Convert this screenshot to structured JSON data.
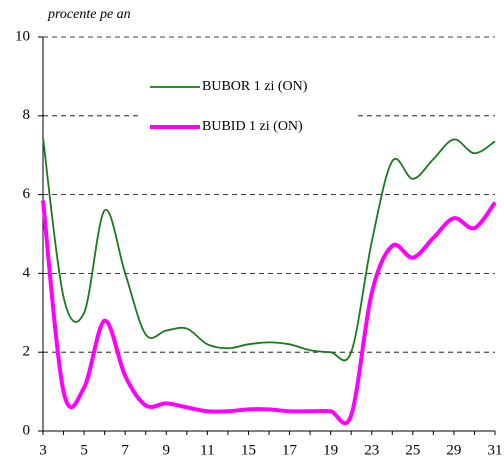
{
  "chart_data": {
    "type": "line",
    "y_label": "procente pe an",
    "categories": [
      "3",
      null,
      "5",
      null,
      "7",
      null,
      "9",
      null,
      "11",
      null,
      "15",
      null,
      "17",
      null,
      "19",
      null,
      "23",
      null,
      "25",
      null,
      "29",
      null,
      "31"
    ],
    "series": [
      {
        "name": "BUBOR 1 zi (ON)",
        "color": "#1a7a1a",
        "values": [
          7.45,
          3.4,
          3.0,
          5.6,
          4.0,
          2.45,
          2.55,
          2.6,
          2.2,
          2.1,
          2.2,
          2.25,
          2.2,
          2.05,
          2.0,
          2.0,
          4.8,
          6.85,
          6.4,
          6.9,
          7.4,
          7.05,
          7.35
        ]
      },
      {
        "name": "BUBID 1 zi (ON)",
        "color": "#ff00ff",
        "values": [
          5.85,
          1.0,
          1.1,
          2.8,
          1.4,
          0.65,
          0.7,
          0.6,
          0.5,
          0.5,
          0.55,
          0.55,
          0.5,
          0.5,
          0.5,
          0.4,
          3.5,
          4.7,
          4.4,
          4.9,
          5.4,
          5.15,
          5.8
        ]
      }
    ],
    "ylim": [
      0,
      10
    ],
    "yticks": [
      0,
      2,
      4,
      6,
      8,
      10
    ],
    "grid": true
  }
}
